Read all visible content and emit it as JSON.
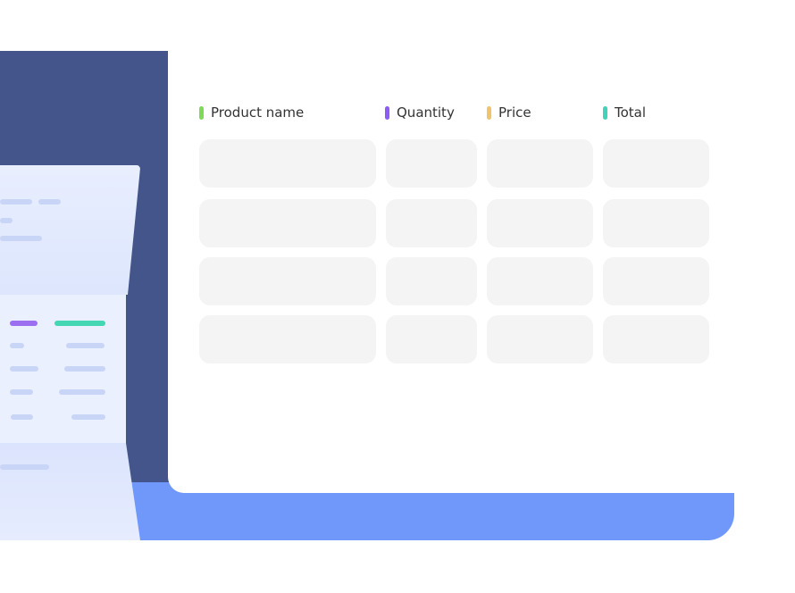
{
  "colors": {
    "panel": "#43558a",
    "accent_bar": "#6f98fa",
    "product": "#7ed957",
    "quantity": "#8b5cf6",
    "price": "#f0c36d",
    "total": "#3fd4b9"
  },
  "table": {
    "columns": [
      {
        "label": "Product name",
        "color": "#7ed957"
      },
      {
        "label": "Quantity",
        "color": "#8b5cf6"
      },
      {
        "label": "Price",
        "color": "#f0c36d"
      },
      {
        "label": "Total",
        "color": "#3fd4b9"
      }
    ],
    "row_count": 4
  }
}
